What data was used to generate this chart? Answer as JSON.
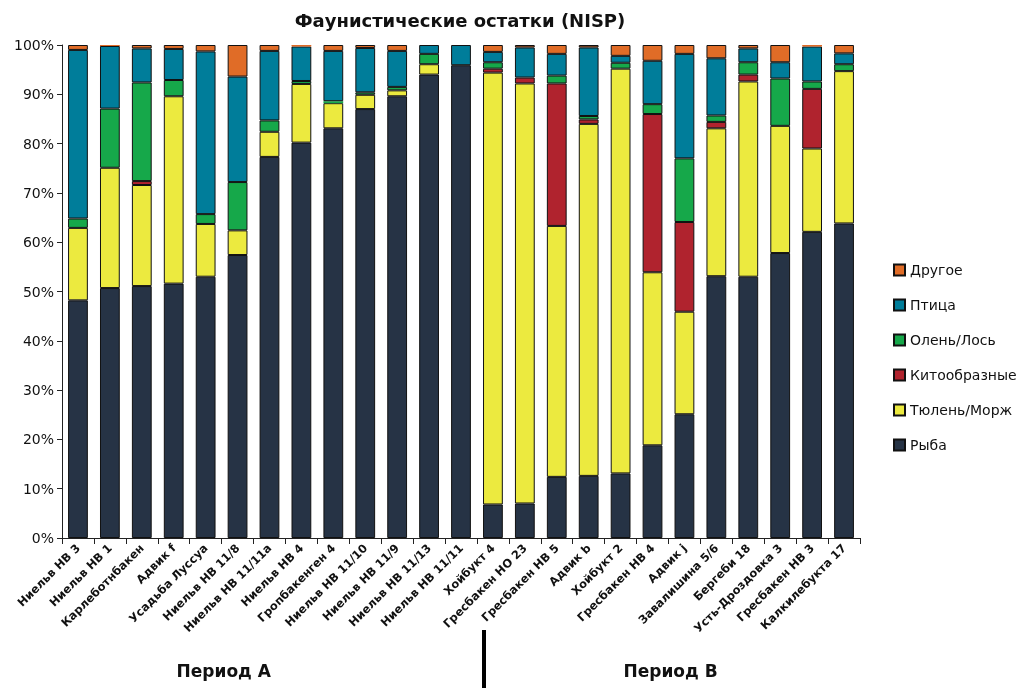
{
  "chart_data": {
    "type": "bar",
    "title": "Фаунистические остатки (NISP)",
    "stacked": true,
    "categories": [
      "Ниельв НВ 3",
      "Ниельв НВ 1",
      "Карлеботнбакен",
      "Адвик f",
      "Усадьба Луссуа",
      "Ниельв НВ 11/8",
      "Ниельв НВ 11/11а",
      "Ниельв НВ 4",
      "Гропбакенген 4",
      "Ниельв НВ 11/10",
      "Ниельв НВ 11/9",
      "Ниельв НВ 11/13",
      "Ниельв НВ 11/11",
      "Хойбукт 4",
      "Гресбакен НО 23",
      "Гресбакен НВ 5",
      "Адвик b",
      "Хойбукт 2",
      "Гресбакен НВ 4",
      "Адвик j",
      "Завалишина 5/6",
      "Бергеби 18",
      "Усть-Дроздовка 3",
      "Гресбакен НВ 3",
      "Калкилебукта 17"
    ],
    "series": [
      {
        "name": "Рыба",
        "color": "#263345",
        "values": [
          48.2,
          50.7,
          51.1,
          51.6,
          53.0,
          57.4,
          77.3,
          80.2,
          83.1,
          87.0,
          89.6,
          94.0,
          95.9,
          6.8,
          7.0,
          12.4,
          12.6,
          13.1,
          18.8,
          25.1,
          53.1,
          53.0,
          57.8,
          62.1,
          63.8
        ]
      },
      {
        "name": "Тюлень/Морж",
        "color": "#ecea3f",
        "values": [
          14.7,
          24.4,
          20.5,
          38.0,
          10.7,
          5.0,
          5.1,
          11.9,
          5.1,
          2.9,
          1.2,
          2.1,
          0,
          87.6,
          85.2,
          50.9,
          71.4,
          82.1,
          35.1,
          20.8,
          30.0,
          39.6,
          25.8,
          16.9,
          30.9
        ]
      },
      {
        "name": "Китообразные",
        "color": "#b0232e",
        "values": [
          0,
          0,
          0.8,
          0,
          0,
          0,
          0,
          0,
          0,
          0,
          0,
          0,
          0,
          0.8,
          1.2,
          28.9,
          0.9,
          0,
          32.1,
          18.2,
          1.3,
          1.4,
          0,
          12.1,
          0
        ]
      },
      {
        "name": "Олень/Лось",
        "color": "#16a84a",
        "values": [
          1.9,
          12.0,
          20.0,
          3.3,
          2.0,
          9.8,
          2.3,
          0.6,
          0.4,
          0.5,
          0.7,
          2.1,
          0,
          1.3,
          0,
          1.6,
          0.7,
          1.2,
          2.0,
          12.9,
          1.3,
          2.5,
          9.6,
          1.5,
          1.4
        ]
      },
      {
        "name": "Птица",
        "color": "#007d9a",
        "values": [
          34.2,
          12.7,
          6.9,
          6.3,
          33.0,
          21.4,
          14.1,
          7.0,
          10.2,
          9.0,
          7.3,
          1.8,
          4.1,
          2.1,
          6.1,
          4.4,
          13.9,
          1.4,
          8.8,
          21.2,
          11.6,
          2.8,
          3.3,
          7.1,
          2.2
        ]
      },
      {
        "name": "Другое",
        "color": "#e06c27",
        "values": [
          1.0,
          0.2,
          0.7,
          0.8,
          1.3,
          6.4,
          1.2,
          0.3,
          1.2,
          0.6,
          1.2,
          0,
          0,
          1.4,
          0.5,
          1.8,
          0.5,
          2.2,
          3.2,
          1.8,
          2.7,
          0.7,
          3.5,
          0.3,
          1.7
        ]
      }
    ],
    "ylim": [
      0,
      100
    ],
    "yticks": [
      {
        "value": 0,
        "label": "0%"
      },
      {
        "value": 10,
        "label": "10%"
      },
      {
        "value": 20,
        "label": "20%"
      },
      {
        "value": 30,
        "label": "30%"
      },
      {
        "value": 40,
        "label": "40%"
      },
      {
        "value": 50,
        "label": "50%"
      },
      {
        "value": 60,
        "label": "60%"
      },
      {
        "value": 70,
        "label": "70%"
      },
      {
        "value": 80,
        "label": "80%"
      },
      {
        "value": 90,
        "label": "90%"
      },
      {
        "value": 100,
        "label": "100%"
      }
    ],
    "grid": false,
    "legend": "right",
    "annotations": [
      "Период А",
      "Период В"
    ]
  }
}
